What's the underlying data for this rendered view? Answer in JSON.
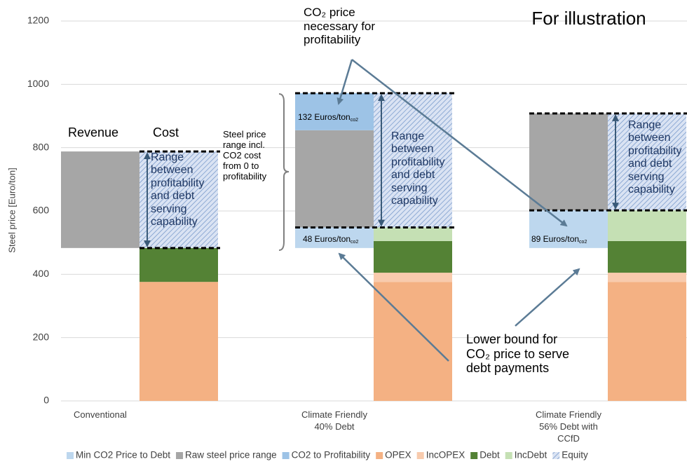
{
  "chart_data": {
    "type": "floating_bar",
    "title": "For illustration",
    "y_label": "Steel price [Euro/ton]",
    "categories": [
      "Conventional",
      "Climate Friendly 40% Debt",
      "Climate Friendly 56% Debt with CCfD"
    ],
    "ylim": [
      0,
      1200
    ],
    "yticks": [
      0,
      200,
      400,
      600,
      800,
      1000,
      1200
    ],
    "grid": true,
    "legend": "bottom",
    "series": [
      {
        "name": "Min CO2 Price to Debt",
        "color": "#bdd7ee",
        "stack": "Revenue",
        "values": [
          null,
          [
            483,
            548
          ],
          [
            483,
            602
          ]
        ]
      },
      {
        "name": "Raw steel price range",
        "color": "#a6a6a6",
        "stack": "Revenue",
        "values": [
          [
            483,
            788
          ],
          [
            548,
            855
          ],
          [
            602,
            908
          ]
        ]
      },
      {
        "name": "CO2 to Profitability",
        "color": "#9dc3e6",
        "stack": "Revenue",
        "values": [
          null,
          [
            855,
            972
          ],
          null
        ]
      },
      {
        "name": "OPEX",
        "color": "#f4b183",
        "stack": "Cost",
        "values": [
          [
            0,
            376
          ],
          [
            0,
            376
          ],
          [
            0,
            376
          ]
        ]
      },
      {
        "name": "IncOPEX",
        "color": "#f8cbad",
        "stack": "Cost",
        "values": [
          null,
          [
            376,
            405
          ],
          [
            376,
            405
          ]
        ]
      },
      {
        "name": "Debt",
        "color": "#548235",
        "stack": "Cost",
        "values": [
          [
            376,
            483
          ],
          [
            405,
            505
          ],
          [
            405,
            505
          ]
        ]
      },
      {
        "name": "IncDebt",
        "color": "#c5e0b4",
        "stack": "Cost",
        "values": [
          null,
          [
            505,
            548
          ],
          [
            505,
            602
          ]
        ]
      },
      {
        "name": "Equity",
        "color": "#dae3f3",
        "stack": "Cost",
        "pattern": "hatch",
        "values": [
          [
            483,
            788
          ],
          [
            548,
            972
          ],
          [
            602,
            908
          ]
        ]
      }
    ],
    "annotations": {
      "revenue": "Revenue",
      "cost": "Cost",
      "steel_range": "Steel price range incl. CO2 cost from 0 to profitability",
      "range_text": "Range between profitability and debt serving capability",
      "co2_top": "CO₂ price necessary for profitability",
      "co2_low": "Lower bound for CO₂ price to serve debt payments",
      "label_132": "132 Euros/ton",
      "label_48": "48 Euros/ton",
      "label_89": "89 Euros/ton",
      "unit_sub": "co2"
    }
  }
}
